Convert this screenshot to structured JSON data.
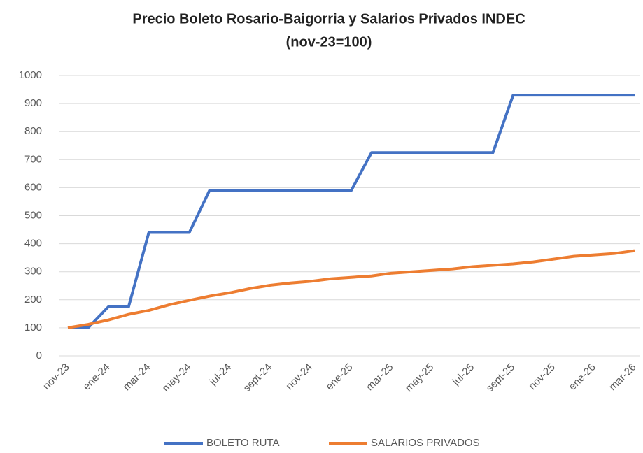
{
  "chart_data": {
    "type": "line",
    "title": "Precio Boleto Rosario-Baigorria y Salarios Privados INDEC",
    "subtitle": "(nov-23=100)",
    "categories": [
      "nov-23",
      null,
      "ene-24",
      null,
      "mar-24",
      null,
      "may-24",
      null,
      "jul-24",
      null,
      "sept-24",
      null,
      "nov-24",
      null,
      "ene-25",
      null,
      "mar-25",
      null,
      "may-25",
      null,
      "jul-25",
      null,
      "sept-25",
      null,
      "nov-25",
      null,
      "ene-26",
      null,
      "mar-26"
    ],
    "series": [
      {
        "name": "BOLETO RUTA",
        "color": "#4472c4",
        "values": [
          100,
          100,
          175,
          175,
          440,
          440,
          440,
          590,
          590,
          590,
          590,
          590,
          590,
          590,
          590,
          725,
          725,
          725,
          725,
          725,
          725,
          725,
          930,
          930,
          930,
          930,
          930,
          930,
          930
        ]
      },
      {
        "name": "SALARIOS PRIVADOS",
        "color": "#ed7d31",
        "values": [
          100,
          112,
          128,
          148,
          162,
          182,
          198,
          213,
          225,
          240,
          252,
          260,
          266,
          275,
          280,
          285,
          295,
          300,
          305,
          310,
          318,
          323,
          328,
          335,
          345,
          355,
          360,
          365,
          375
        ]
      }
    ],
    "ylim": [
      0,
      1000
    ],
    "yticks": [
      0,
      100,
      200,
      300,
      400,
      500,
      600,
      700,
      800,
      900,
      1000
    ],
    "grid": true,
    "legend": "bottom"
  }
}
